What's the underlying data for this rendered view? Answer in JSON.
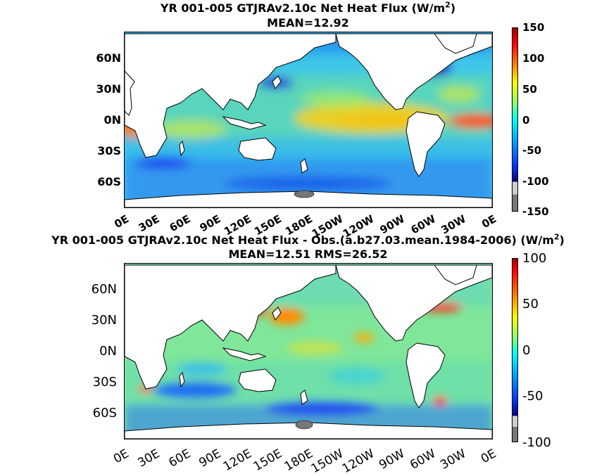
{
  "panel1": {
    "title_line1": "YR 001-005 GTJRAv2.10c  Net Heat Flux (W/m",
    "title_sup": "2",
    "title_line1_end": ")",
    "title_line2": "MEAN=12.92",
    "yticks": [
      "60N",
      "30N",
      "0N",
      "30S",
      "60S"
    ],
    "xticks": [
      "0E",
      "30E",
      "60E",
      "90E",
      "120E",
      "150E",
      "180E",
      "150W",
      "120W",
      "90W",
      "60W",
      "30W",
      "0E"
    ],
    "colorbar_ticks": [
      "150",
      "100",
      "50",
      "0",
      "-50",
      "-100",
      "-150"
    ],
    "colorbar_range": [
      -150,
      150
    ]
  },
  "panel2": {
    "title_line1": "YR 001-005 GTJRAv2.10c  Net Heat Flux - Obs.(a.b27.03.mean.1984-2006) (W/m",
    "title_sup": "2",
    "title_line1_end": ")",
    "title_line2": "MEAN=12.51 RMS=26.52",
    "yticks": [
      "60N",
      "30N",
      "0N",
      "30S",
      "60S"
    ],
    "xticks": [
      "0E",
      "30E",
      "60E",
      "90E",
      "120E",
      "150E",
      "180E",
      "150W",
      "120W",
      "90W",
      "60W",
      "30W",
      "0E"
    ],
    "colorbar_ticks": [
      "100",
      "50",
      "0",
      "-50",
      "-100"
    ],
    "colorbar_range": [
      -100,
      100
    ]
  },
  "colors": {
    "land": "#ffffff",
    "sea_ice": "#777777",
    "colormap": [
      "#00007f",
      "#0000ff",
      "#007fff",
      "#00ffff",
      "#7fff7f",
      "#ffff00",
      "#ff7f00",
      "#ff0000",
      "#7f0000"
    ]
  }
}
